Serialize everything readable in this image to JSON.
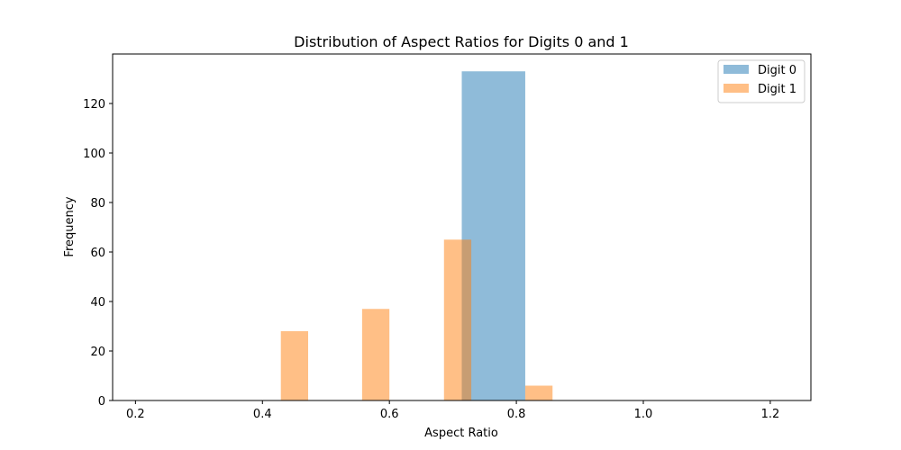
{
  "chart_data": {
    "type": "bar",
    "title": "Distribution of Aspect Ratios for Digits 0 and 1",
    "xlabel": "Aspect Ratio",
    "ylabel": "Frequency",
    "xlim": [
      0.164,
      1.264
    ],
    "ylim": [
      0,
      140
    ],
    "xticks": [
      0.2,
      0.4,
      0.6,
      0.8,
      1.0,
      1.2
    ],
    "xtick_labels": [
      "0.2",
      "0.4",
      "0.6",
      "0.8",
      "1.0",
      "1.2"
    ],
    "yticks": [
      0,
      20,
      40,
      60,
      80,
      100,
      120
    ],
    "ytick_labels": [
      "0",
      "20",
      "40",
      "60",
      "80",
      "100",
      "120"
    ],
    "grid": false,
    "legend_position": "top-right",
    "series": [
      {
        "name": "Digit 0",
        "color": "#1f77b4",
        "opacity": 0.5,
        "bins": [
          {
            "x0": 0.714,
            "x1": 0.814,
            "count": 133
          }
        ]
      },
      {
        "name": "Digit 1",
        "color": "#ff7f0e",
        "opacity": 0.5,
        "bins": [
          {
            "x0": 0.429,
            "x1": 0.472,
            "count": 28
          },
          {
            "x0": 0.557,
            "x1": 0.6,
            "count": 37
          },
          {
            "x0": 0.686,
            "x1": 0.729,
            "count": 65
          },
          {
            "x0": 0.814,
            "x1": 0.857,
            "count": 6
          }
        ]
      }
    ]
  }
}
